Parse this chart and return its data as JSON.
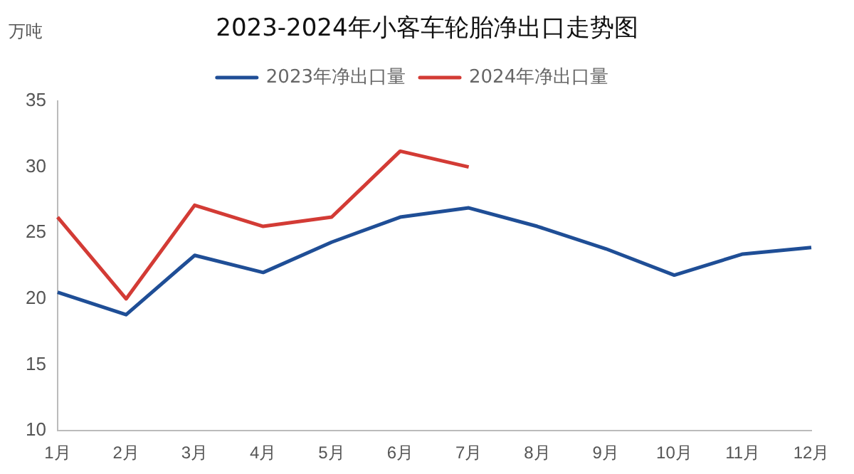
{
  "chart_data": {
    "type": "line",
    "title": "2023-2024年小客车轮胎净出口走势图",
    "ylabel": "万吨",
    "categories": [
      "1月",
      "2月",
      "3月",
      "4月",
      "5月",
      "6月",
      "7月",
      "8月",
      "9月",
      "10月",
      "11月",
      "12月"
    ],
    "series": [
      {
        "name": "2023年净出口量",
        "color": "#1f4e96",
        "values": [
          20.5,
          18.8,
          23.3,
          22.0,
          24.3,
          26.2,
          26.9,
          25.5,
          23.8,
          21.8,
          23.4,
          23.9
        ]
      },
      {
        "name": "2024年净出口量",
        "color": "#d33b35",
        "values": [
          26.2,
          20.0,
          27.1,
          25.5,
          26.2,
          31.2,
          30.0,
          null,
          null,
          null,
          null,
          null
        ]
      }
    ],
    "ylim": [
      10,
      35
    ],
    "yticks": [
      10,
      15,
      20,
      25,
      30,
      35
    ],
    "grid": false,
    "legend": "top",
    "marker": "none"
  }
}
